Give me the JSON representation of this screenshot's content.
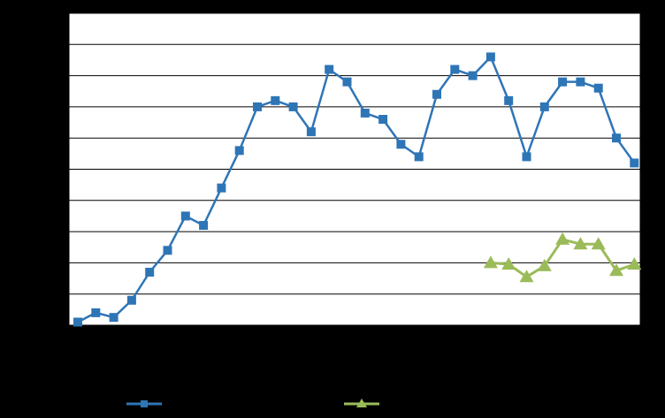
{
  "chart_data": {
    "type": "line",
    "title": "",
    "xlabel": "",
    "ylabel": "",
    "ylim": [
      0,
      100
    ],
    "y_gridlines": [
      0,
      10,
      20,
      30,
      40,
      50,
      60,
      70,
      80,
      90,
      100
    ],
    "grid": true,
    "legend_position": "bottom",
    "colors": {
      "background": "#000000",
      "plot_area": "#ffffff",
      "grid": "#000000",
      "series_1": "#2e75b6",
      "series_2": "#9bbb59"
    },
    "series": [
      {
        "name": "",
        "color": "#2e75b6",
        "marker": "square",
        "start_index": 0,
        "values": [
          1,
          4,
          2.5,
          8,
          17,
          24,
          35,
          32,
          44,
          56,
          70,
          72,
          70,
          62,
          82,
          78,
          68,
          66,
          58,
          54,
          74,
          82,
          80,
          86,
          72,
          54,
          70,
          78,
          78,
          76,
          60,
          52
        ]
      },
      {
        "name": "",
        "color": "#9bbb59",
        "marker": "triangle",
        "start_index": 23,
        "values": [
          20,
          19.5,
          15.5,
          19,
          27.5,
          26,
          26,
          17.5,
          19.5
        ]
      }
    ]
  }
}
